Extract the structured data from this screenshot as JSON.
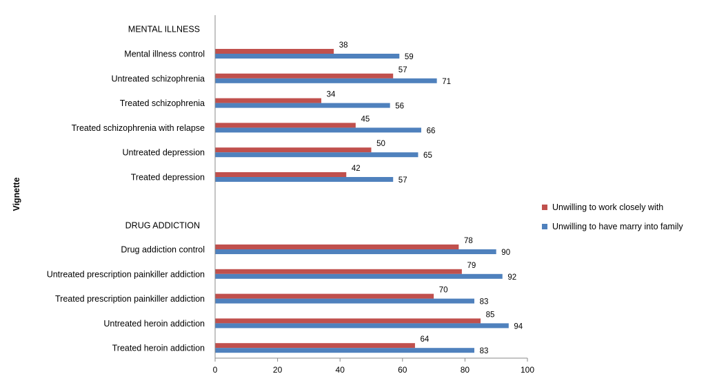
{
  "chart_data": {
    "type": "bar",
    "orientation": "horizontal",
    "ylabel": "Vignette",
    "xlabel": "",
    "xlim": [
      0,
      100
    ],
    "xticks": [
      0,
      20,
      40,
      60,
      80,
      100
    ],
    "grid": false,
    "legend_position": "right",
    "groups": [
      {
        "heading": "MENTAL ILLNESS",
        "categories": [
          "Mental illness control",
          "Untreated schizophrenia",
          "Treated schizophrenia",
          "Treated schizophrenia with relapse",
          "Untreated depression",
          "Treated depression"
        ]
      },
      {
        "heading": "DRUG ADDICTION",
        "categories": [
          "Drug addiction control",
          "Untreated prescription painkiller addiction",
          "Treated prescription painkiller addiction",
          "Untreated heroin addiction",
          "Treated heroin addiction"
        ]
      }
    ],
    "series": [
      {
        "name": "Unwilling to work closely with",
        "color": "#c0504d",
        "values": [
          38,
          57,
          34,
          45,
          50,
          42,
          78,
          79,
          70,
          85,
          64
        ]
      },
      {
        "name": "Unwilling to have marry into family",
        "color": "#4f81bd",
        "values": [
          59,
          71,
          56,
          66,
          65,
          57,
          90,
          92,
          83,
          94,
          83
        ]
      }
    ]
  }
}
